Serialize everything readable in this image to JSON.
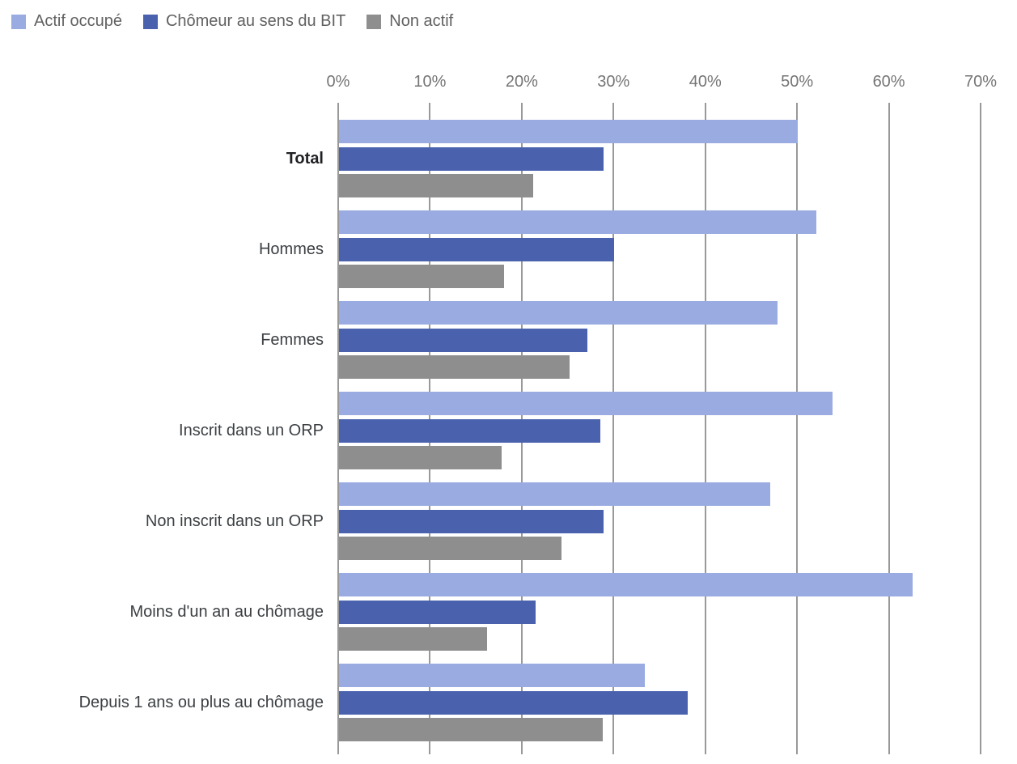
{
  "page": {
    "background": "#ffffff"
  },
  "legend": {
    "items": [
      {
        "label": "Actif occupé",
        "color": "#99abe1"
      },
      {
        "label": "Chômeur au sens du BIT",
        "color": "#4a62ae"
      },
      {
        "label": "Non actif",
        "color": "#8e8e8e"
      }
    ]
  },
  "chart_data": {
    "type": "bar",
    "orientation": "horizontal",
    "title": "",
    "categories": [
      "Total",
      "Hommes",
      "Femmes",
      "Inscrit dans un ORP",
      "Non inscrit dans un ORP",
      "Moins d'un an au chômage",
      "Depuis 1 ans ou plus au chômage"
    ],
    "series": [
      {
        "name": "Actif occupé",
        "color": "#99abe1",
        "values": [
          50.0,
          52.0,
          47.8,
          53.8,
          47.0,
          62.5,
          33.3
        ]
      },
      {
        "name": "Chômeur au sens du BIT",
        "color": "#4a62ae",
        "values": [
          28.8,
          30.0,
          27.1,
          28.5,
          28.8,
          21.4,
          38.0
        ]
      },
      {
        "name": "Non actif",
        "color": "#8e8e8e",
        "values": [
          21.2,
          18.0,
          25.1,
          17.7,
          24.2,
          16.1,
          28.7
        ]
      }
    ],
    "x_axis": {
      "min": 0,
      "max": 70,
      "tick_step": 10,
      "tick_labels": [
        "0%",
        "10%",
        "20%",
        "30%",
        "40%",
        "50%",
        "60%",
        "70%"
      ],
      "position": "top",
      "unit": "%"
    },
    "grid": true,
    "legend_position": "top-left",
    "value_format": "percent",
    "bold_categories": [
      "Total"
    ]
  },
  "styles": {
    "grid_color": "#999999",
    "axis_label_color": "#757575",
    "category_label_color": "#3c4043",
    "category_bold_color": "#202124",
    "legend_text_color": "#616161"
  }
}
